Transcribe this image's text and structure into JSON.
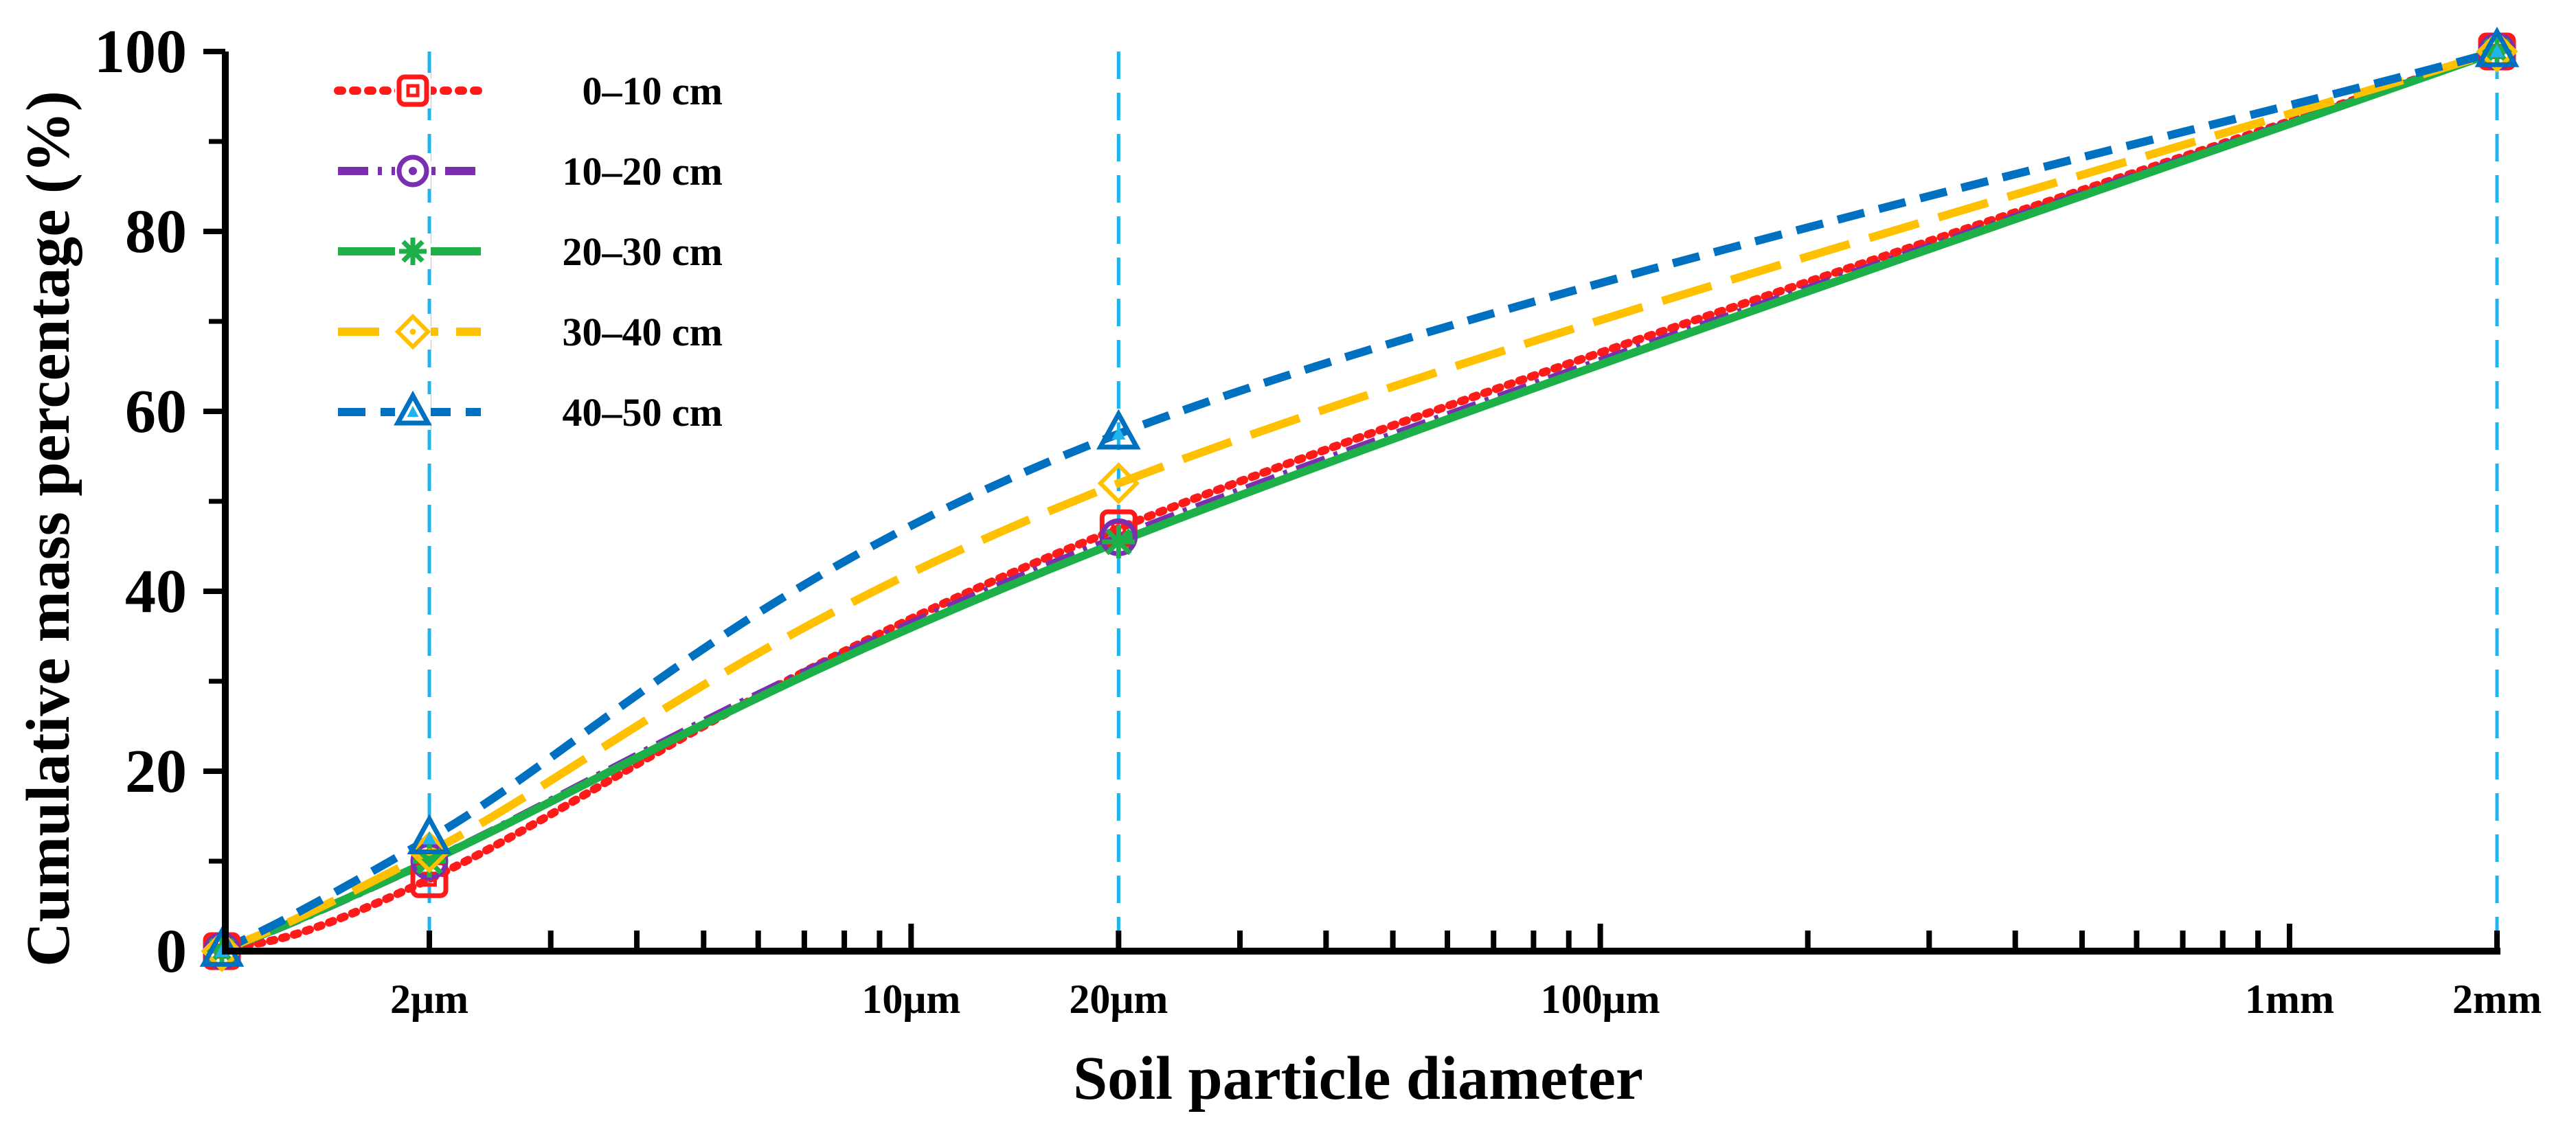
{
  "chart_data": {
    "type": "line",
    "title": "",
    "xlabel": "Soil particle diameter",
    "ylabel": "Cumulative mass percentage (%)",
    "x_scale": "log",
    "x_unit": "µm",
    "x": [
      1,
      2,
      20,
      2000
    ],
    "x_tick_labels": [
      {
        "value": 2,
        "label": "2μm"
      },
      {
        "value": 10,
        "label": "10μm"
      },
      {
        "value": 20,
        "label": "20μm"
      },
      {
        "value": 100,
        "label": "100μm"
      },
      {
        "value": 1000,
        "label": "1mm"
      },
      {
        "value": 2000,
        "label": "2mm"
      }
    ],
    "ylim": [
      0,
      100
    ],
    "y_ticks": [
      0,
      20,
      40,
      60,
      80,
      100
    ],
    "reference_lines_x": [
      2,
      20,
      2000
    ],
    "legend_position": "top-left",
    "series": [
      {
        "name": "0–10 cm",
        "color": "#ff1a1a",
        "dash": "dotted",
        "marker": "square",
        "values": [
          0,
          8,
          47,
          100
        ]
      },
      {
        "name": "10–20 cm",
        "color": "#7a2fb0",
        "dash": "dashdot",
        "marker": "circle",
        "values": [
          0,
          10,
          46,
          100
        ]
      },
      {
        "name": "20–30 cm",
        "color": "#1db048",
        "dash": "solid",
        "marker": "asterisk",
        "values": [
          0,
          10,
          45.5,
          100
        ]
      },
      {
        "name": "30–40 cm",
        "color": "#ffc000",
        "dash": "longdash",
        "marker": "diamond",
        "values": [
          0,
          11,
          52,
          100
        ]
      },
      {
        "name": "40–50 cm",
        "color": "#0070c0",
        "dash": "dashed",
        "marker": "triangle",
        "values": [
          0,
          12.5,
          57.5,
          100
        ]
      }
    ]
  }
}
